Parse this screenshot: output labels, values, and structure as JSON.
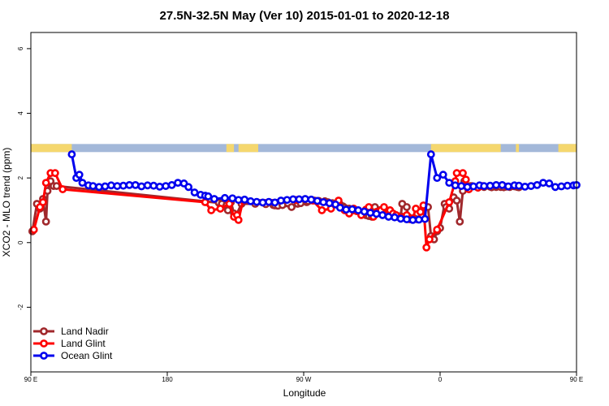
{
  "chart_data": {
    "type": "line",
    "title": "27.5N-32.5N May (Ver 10)   2015-01-01 to 2020-12-18",
    "xlabel": "Longitude",
    "ylabel": "XCO2 - MLO trend (ppm)",
    "xlim": [
      90,
      450
    ],
    "ylim": [
      -4,
      6.5
    ],
    "x_ticks": [
      {
        "value": 90,
        "label": "90 E"
      },
      {
        "value": 180,
        "label": "180"
      },
      {
        "value": 270,
        "label": "90 W"
      },
      {
        "value": 360,
        "label": "0"
      },
      {
        "value": 450,
        "label": "90 E"
      },
      {
        "value": 540,
        "label": "180"
      }
    ],
    "y_ticks": [
      {
        "value": -2,
        "label": "-2"
      },
      {
        "value": 0,
        "label": "0"
      },
      {
        "value": 2,
        "label": "2"
      },
      {
        "value": 4,
        "label": "4"
      },
      {
        "value": 6,
        "label": "6"
      }
    ],
    "land_band": {
      "y_range": [
        2.8,
        3.05
      ],
      "land_color": "#f5d76e",
      "ocean_color": "#a3b8d9",
      "land_segments": [
        [
          90,
          117
        ],
        [
          219,
          224
        ],
        [
          227,
          240
        ],
        [
          354,
          400
        ],
        [
          410,
          412
        ],
        [
          438,
          452
        ],
        [
          457,
          458
        ]
      ]
    },
    "legend_position": "bottom-left",
    "series": [
      {
        "name": "Land Nadir",
        "color": "#a0282c",
        "x": [
          91,
          94,
          96,
          98,
          100,
          101,
          103,
          105,
          107,
          214,
          216,
          219,
          220,
          222,
          224,
          225,
          229,
          238,
          245,
          250,
          251,
          253,
          256,
          262,
          266,
          268,
          272,
          273,
          277,
          280,
          284,
          286,
          289,
          292,
          294,
          296,
          297,
          300,
          303,
          305,
          308,
          311,
          313,
          315,
          317,
          320,
          322,
          324,
          327,
          328,
          332,
          334,
          335,
          338,
          339,
          343,
          345,
          349,
          352,
          354,
          356,
          358,
          360,
          363,
          364,
          366,
          369,
          371,
          373,
          375,
          376,
          380,
          381,
          385,
          389,
          393,
          394,
          397,
          398,
          400,
          402,
          404,
          406,
          409,
          411,
          412
        ],
        "y": [
          0.35,
          1.2,
          1.05,
          1.35,
          0.65,
          1.6,
          1.9,
          1.75,
          1.75,
          1.23,
          1.2,
          1.15,
          1.0,
          1.25,
          0.9,
          0.8,
          1.2,
          1.2,
          1.19,
          1.16,
          1.15,
          1.14,
          1.16,
          1.1,
          1.2,
          1.22,
          1.25,
          1.28,
          1.3,
          1.29,
          1.28,
          1.25,
          1.22,
          1.2,
          1.18,
          1.12,
          1.08,
          1.05,
          1.0,
          0.98,
          0.9,
          0.85,
          0.82,
          0.8,
          1.1,
          1.0,
          0.95,
          0.88,
          0.87,
          0.85,
          0.8,
          0.82,
          1.2,
          1.1,
          0.8,
          0.75,
          0.72,
          1.05,
          1.1,
          0.2,
          0.1,
          0.35,
          0.45,
          1.2,
          1.1,
          1.05,
          1.4,
          1.3,
          0.65,
          1.6,
          1.9,
          1.75,
          1.75,
          1.7,
          1.72,
          1.73,
          1.71,
          1.72,
          1.74,
          1.72,
          1.71,
          1.73,
          1.72,
          1.74,
          1.72,
          1.71
        ]
      },
      {
        "name": "Land Glint",
        "color": "#ff0000",
        "x": [
          92,
          96,
          98,
          100,
          103,
          106,
          111,
          205,
          209,
          215,
          221,
          224,
          226,
          227,
          230,
          265,
          276,
          282,
          288,
          293,
          297,
          300,
          303,
          305,
          308,
          311,
          313,
          316,
          318,
          321,
          323,
          325,
          327,
          329,
          331,
          334,
          335,
          338,
          340,
          342,
          344,
          347,
          349,
          351,
          353,
          358,
          366,
          370,
          371,
          375,
          377,
          379,
          385,
          388
        ],
        "y": [
          0.4,
          1.1,
          1.25,
          1.85,
          2.15,
          2.15,
          1.65,
          1.25,
          1.0,
          1.05,
          1.2,
          0.8,
          0.85,
          0.7,
          1.3,
          1.32,
          1.3,
          1.0,
          1.05,
          1.3,
          1.0,
          0.9,
          1.05,
          0.97,
          0.85,
          1.02,
          1.1,
          0.8,
          0.95,
          1.0,
          1.1,
          0.85,
          1.0,
          0.9,
          0.85,
          0.75,
          0.78,
          0.85,
          0.72,
          0.75,
          1.05,
          0.95,
          1.15,
          -0.15,
          0.1,
          0.4,
          1.25,
          1.9,
          2.15,
          2.15,
          1.95,
          1.65,
          1.7,
          1.75
        ],
        "note": ""
      },
      {
        "name": "Ocean Glint",
        "color": "#0000ee",
        "x": [
          117,
          120,
          122,
          124,
          128,
          131,
          135,
          139,
          143,
          147,
          151,
          155,
          159,
          163,
          167,
          171,
          175,
          179,
          183,
          187,
          191,
          194,
          198,
          202,
          205,
          207,
          211,
          218,
          223,
          227,
          231,
          235,
          239,
          243,
          247,
          251,
          255,
          259,
          263,
          267,
          271,
          275,
          279,
          283,
          287,
          291,
          294,
          298,
          302,
          306,
          310,
          314,
          318,
          322,
          326,
          330,
          334,
          338,
          342,
          346,
          350,
          354,
          358,
          362,
          366,
          370,
          374,
          378,
          382,
          386,
          389,
          393,
          397,
          401,
          405,
          409,
          412,
          416,
          420,
          424,
          428,
          432,
          436,
          440,
          444,
          448,
          450
        ],
        "y": [
          2.73,
          2.0,
          2.1,
          1.85,
          1.77,
          1.75,
          1.72,
          1.74,
          1.77,
          1.75,
          1.76,
          1.78,
          1.78,
          1.74,
          1.77,
          1.76,
          1.73,
          1.75,
          1.78,
          1.85,
          1.83,
          1.72,
          1.55,
          1.48,
          1.45,
          1.43,
          1.35,
          1.38,
          1.37,
          1.32,
          1.33,
          1.28,
          1.26,
          1.24,
          1.26,
          1.24,
          1.3,
          1.32,
          1.34,
          1.34,
          1.35,
          1.33,
          1.29,
          1.25,
          1.22,
          1.18,
          1.08,
          1.02,
          1.03,
          1.0,
          0.96,
          0.92,
          0.89,
          0.85,
          0.8,
          0.78,
          0.74,
          0.72,
          0.7,
          0.71,
          0.73,
          2.73,
          2.0,
          2.1,
          1.85,
          1.77,
          1.75,
          1.72,
          1.74,
          1.77,
          1.75,
          1.76,
          1.78,
          1.78,
          1.74,
          1.77,
          1.76,
          1.73,
          1.75,
          1.78,
          1.85,
          1.83,
          1.72,
          1.74,
          1.76,
          1.77,
          1.78
        ]
      }
    ]
  }
}
